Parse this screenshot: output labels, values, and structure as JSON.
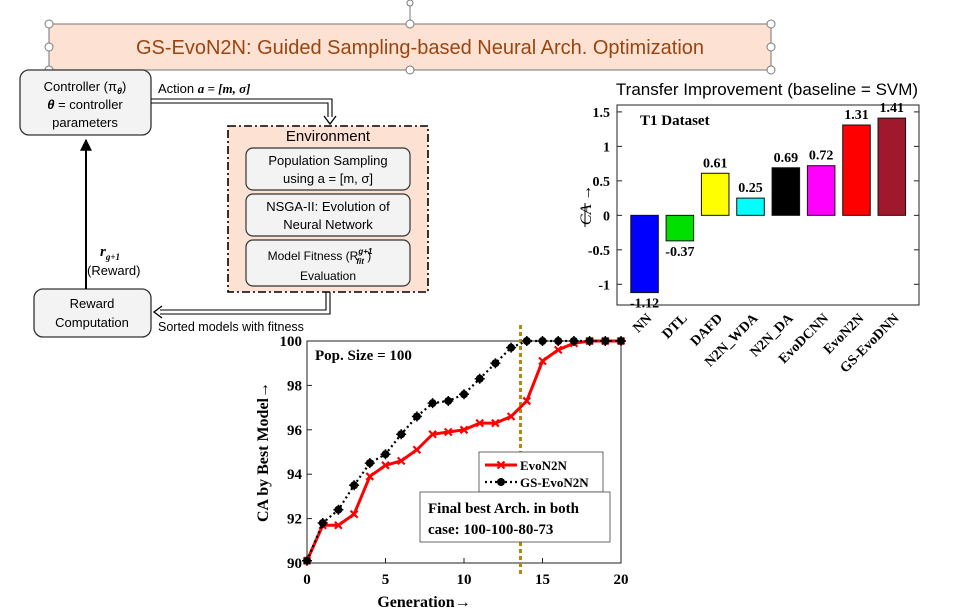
{
  "banner": {
    "title": "GS-EvoN2N: Guided Sampling-based Neural Arch. Optimization"
  },
  "loop": {
    "controller": {
      "line1": "Controller (π",
      "line1_sub": "θ",
      "line1_end": ")",
      "line2_var": "θ",
      "line2_rest": " = controller",
      "line3": "parameters"
    },
    "action_label": {
      "prefix": "Action ",
      "math": "a = [m, σ]"
    },
    "environment": {
      "title": "Environment",
      "steps": [
        {
          "line1": "Population Sampling",
          "line2": "using a = [m, σ]"
        },
        {
          "line1": "NSGA-II: Evolution of",
          "line2": "Neural Network"
        },
        {
          "line1": "Model Fitness (R",
          "line1_sup": "g+1",
          "line1_sub": "fit",
          "line1_end": " )",
          "line2": "Evaluation"
        }
      ]
    },
    "reward_box": {
      "line1": "Reward",
      "line2": "Computation"
    },
    "sorted_label": "Sorted models with fitness",
    "reward_var": {
      "math": "r",
      "sub": "g+1",
      "caption": "(Reward)"
    }
  },
  "chart_data": [
    {
      "type": "bar",
      "title": "Transfer Improvement (baseline = SVM)",
      "annotation": "T1 Dataset",
      "ylabel": "CA →",
      "categories": [
        "NN",
        "DTL",
        "DAFD",
        "N2N_WDA",
        "N2N_DA",
        "EvoDCNN",
        "EvoN2N",
        "GS-EvoDNN"
      ],
      "values": [
        -1.12,
        -0.37,
        0.61,
        0.25,
        0.69,
        0.72,
        1.31,
        1.41
      ],
      "value_labels": [
        "-1.12",
        "-0.37",
        "0.61",
        "0.25",
        "0.69",
        "0.72",
        "1.31",
        "1.41"
      ],
      "colors": [
        "#0000ff",
        "#00e000",
        "#ffff00",
        "#00ffff",
        "#000000",
        "#ff00ff",
        "#ff0000",
        "#a0182c"
      ],
      "ylim": [
        -1.3,
        1.6
      ],
      "yticks": [
        -1,
        -0.5,
        0,
        0.5,
        1,
        1.5
      ],
      "ytick_labels": [
        "-1",
        "-0.5",
        "0",
        "0.5",
        "1",
        "1.5"
      ]
    },
    {
      "type": "line",
      "xlabel": "Generation→",
      "ylabel": "CA by Best Model→",
      "annotation_top": "Pop. Size = 100",
      "annotation_box": [
        "Final best Arch. in both",
        "case: 100-100-80-73"
      ],
      "xlim": [
        0,
        20
      ],
      "ylim": [
        90,
        100
      ],
      "xticks": [
        0,
        5,
        10,
        15,
        20
      ],
      "yticks": [
        90,
        92,
        94,
        96,
        98,
        100
      ],
      "vline_x": 13.6,
      "legend": "right-middle",
      "x": [
        0,
        1,
        2,
        3,
        4,
        5,
        6,
        7,
        8,
        9,
        10,
        11,
        12,
        13,
        14,
        15,
        16,
        17,
        18,
        19,
        20
      ],
      "series": [
        {
          "name": "EvoN2N",
          "color": "#ff0000",
          "values": [
            90.1,
            91.7,
            91.7,
            92.2,
            93.9,
            94.4,
            94.6,
            95.1,
            95.8,
            95.9,
            96.0,
            96.3,
            96.3,
            96.6,
            97.3,
            99.1,
            99.6,
            99.9,
            100,
            100,
            100
          ]
        },
        {
          "name": "GS-EvoN2N",
          "color": "#000000",
          "values": [
            90.1,
            91.8,
            92.4,
            93.5,
            94.5,
            94.9,
            95.8,
            96.6,
            97.2,
            97.3,
            97.6,
            98.3,
            99.0,
            99.7,
            100,
            100,
            100,
            100,
            100,
            100,
            100
          ]
        }
      ]
    }
  ]
}
